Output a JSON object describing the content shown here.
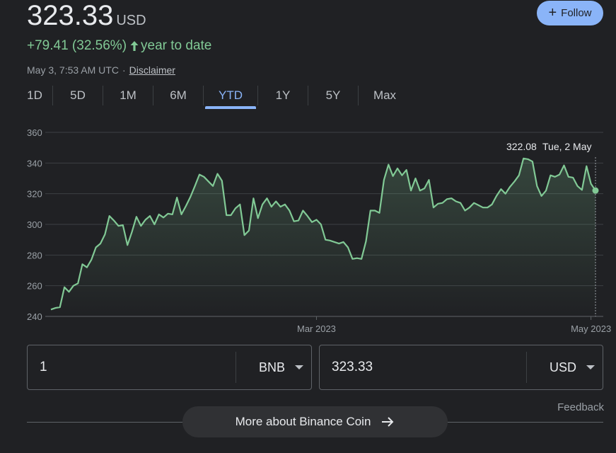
{
  "header": {
    "price": "323.33",
    "currency": "USD",
    "change": "+79.41 (32.56%)",
    "change_period": "year to date",
    "timestamp": "May 3, 7:53 AM UTC",
    "separator": "·",
    "disclaimer": "Disclaimer",
    "follow_label": "Follow",
    "follow_icon": "plus-icon"
  },
  "tabs": [
    {
      "label": "1D"
    },
    {
      "label": "5D"
    },
    {
      "label": "1M"
    },
    {
      "label": "6M"
    },
    {
      "label": "YTD",
      "active": true
    },
    {
      "label": "1Y"
    },
    {
      "label": "5Y"
    },
    {
      "label": "Max"
    }
  ],
  "chart_data": {
    "type": "area",
    "y_ticks": [
      "360",
      "340",
      "320",
      "300",
      "280",
      "260",
      "240"
    ],
    "ylim": [
      240,
      360
    ],
    "grid": true,
    "x_labels": [
      "Mar 2023",
      "May 2023"
    ],
    "tooltip": {
      "value": "322.08",
      "date": "Tue, 2 May"
    },
    "line_color": "#81c995",
    "series": [
      {
        "dates": [
          "2023-01-01",
          "2023-01-02",
          "2023-01-03",
          "2023-01-04",
          "2023-01-05",
          "2023-01-06",
          "2023-01-07",
          "2023-01-08",
          "2023-01-09",
          "2023-01-10",
          "2023-01-11",
          "2023-01-12",
          "2023-01-13",
          "2023-01-14",
          "2023-01-15",
          "2023-01-16",
          "2023-01-17",
          "2023-01-18",
          "2023-01-19",
          "2023-01-20",
          "2023-01-21",
          "2023-01-22",
          "2023-01-23",
          "2023-01-24",
          "2023-01-25",
          "2023-01-26",
          "2023-01-27",
          "2023-01-28",
          "2023-01-29",
          "2023-01-30",
          "2023-01-31",
          "2023-02-01",
          "2023-02-02",
          "2023-02-03",
          "2023-02-04",
          "2023-02-05",
          "2023-02-06",
          "2023-02-07",
          "2023-02-08",
          "2023-02-09",
          "2023-02-10",
          "2023-02-11",
          "2023-02-12",
          "2023-02-13",
          "2023-02-14",
          "2023-02-15",
          "2023-02-16",
          "2023-02-17",
          "2023-02-18",
          "2023-02-19",
          "2023-02-20",
          "2023-02-21",
          "2023-02-22",
          "2023-02-23",
          "2023-02-24",
          "2023-02-25",
          "2023-02-26",
          "2023-02-27",
          "2023-02-28",
          "2023-03-01",
          "2023-03-02",
          "2023-03-03",
          "2023-03-04",
          "2023-03-05",
          "2023-03-06",
          "2023-03-07",
          "2023-03-08",
          "2023-03-09",
          "2023-03-10",
          "2023-03-11",
          "2023-03-12",
          "2023-03-13",
          "2023-03-14",
          "2023-03-15",
          "2023-03-16",
          "2023-03-17",
          "2023-03-18",
          "2023-03-19",
          "2023-03-20",
          "2023-03-21",
          "2023-03-22",
          "2023-03-23",
          "2023-03-24",
          "2023-03-25",
          "2023-03-26",
          "2023-03-27",
          "2023-03-28",
          "2023-03-29",
          "2023-03-30",
          "2023-03-31",
          "2023-04-01",
          "2023-04-02",
          "2023-04-03",
          "2023-04-04",
          "2023-04-05",
          "2023-04-06",
          "2023-04-07",
          "2023-04-08",
          "2023-04-09",
          "2023-04-10",
          "2023-04-11",
          "2023-04-12",
          "2023-04-13",
          "2023-04-14",
          "2023-04-15",
          "2023-04-16",
          "2023-04-17",
          "2023-04-18",
          "2023-04-19",
          "2023-04-20",
          "2023-04-21",
          "2023-04-22",
          "2023-04-23",
          "2023-04-24",
          "2023-04-25",
          "2023-04-26",
          "2023-04-27",
          "2023-04-28",
          "2023-04-29",
          "2023-04-30",
          "2023-05-01",
          "2023-05-02"
        ],
        "values": [
          244.5,
          245.5,
          246,
          259,
          256,
          260,
          261.5,
          274,
          272,
          277,
          285,
          287.5,
          293.5,
          305.5,
          302.5,
          299,
          299.5,
          286.5,
          295,
          305,
          299,
          303,
          305.5,
          300,
          306.5,
          304.5,
          307,
          306.5,
          317.5,
          306.5,
          312,
          318,
          325,
          332.5,
          331,
          328,
          325,
          333,
          328.5,
          306,
          306,
          310.5,
          313,
          293,
          296,
          317,
          304,
          313,
          317,
          311.5,
          315,
          311.5,
          313,
          309,
          302,
          302.5,
          309,
          305.5,
          301.5,
          303,
          300,
          290,
          289.5,
          288.5,
          287.5,
          288.5,
          285,
          277.5,
          278,
          277.5,
          289,
          309,
          309,
          307.5,
          329,
          339,
          331.5,
          336.5,
          332,
          335.5,
          322,
          330,
          322,
          323.5,
          329,
          311,
          313.5,
          314,
          316.5,
          317,
          315,
          314,
          309,
          311,
          314,
          312.5,
          311,
          311,
          313,
          318.5,
          323,
          320,
          324.5,
          328,
          332,
          343,
          342.5,
          341,
          325,
          318.5,
          322,
          332,
          331,
          332.5,
          338.5,
          331,
          330.5,
          325,
          322.5,
          338,
          326.5,
          322.08
        ]
      }
    ]
  },
  "converter": {
    "from_value": "1",
    "from_unit": "BNB",
    "to_value": "323.33",
    "to_unit": "USD"
  },
  "footer": {
    "feedback": "Feedback",
    "more_label": "More about Binance Coin",
    "more_icon": "arrow-right-icon"
  }
}
